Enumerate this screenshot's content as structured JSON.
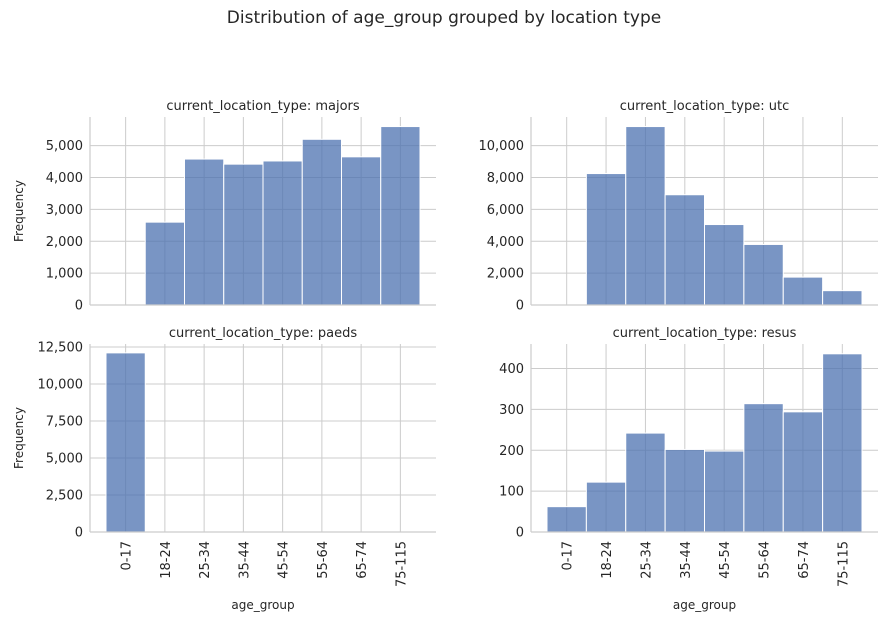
{
  "title": "Distribution of age_group grouped by location type",
  "chart_data": {
    "type": "bar",
    "title": "Distribution of age_group grouped by location type",
    "xlabel": "age_group",
    "ylabel": "Frequency",
    "categories": [
      "0-17",
      "18-24",
      "25-34",
      "35-44",
      "45-54",
      "55-64",
      "65-74",
      "75-115"
    ],
    "grid": true,
    "facets": [
      {
        "id": "majors",
        "title": "current_location_type: majors",
        "values": [
          0,
          2600,
          4580,
          4420,
          4520,
          5200,
          4650,
          5600
        ],
        "ylim": [
          0,
          5900
        ],
        "yticks": [
          0,
          1000,
          2000,
          3000,
          4000,
          5000
        ],
        "ytick_labels": [
          "0",
          "1,000",
          "2,000",
          "3,000",
          "4,000",
          "5,000"
        ],
        "show_ylabel": true,
        "show_xlabel": false
      },
      {
        "id": "utc",
        "title": "current_location_type: utc",
        "values": [
          0,
          8250,
          11200,
          6920,
          5050,
          3800,
          1750,
          900
        ],
        "ylim": [
          0,
          11800
        ],
        "yticks": [
          0,
          2000,
          4000,
          6000,
          8000,
          10000
        ],
        "ytick_labels": [
          "0",
          "2,000",
          "4,000",
          "6,000",
          "8,000",
          "10,000"
        ],
        "show_ylabel": false,
        "show_xlabel": false
      },
      {
        "id": "paeds",
        "title": "current_location_type: paeds",
        "values": [
          12100,
          0,
          0,
          0,
          0,
          0,
          0,
          0
        ],
        "ylim": [
          0,
          12700
        ],
        "yticks": [
          0,
          2500,
          5000,
          7500,
          10000,
          12500
        ],
        "ytick_labels": [
          "0",
          "2,500",
          "5,000",
          "7,500",
          "10,000",
          "12,500"
        ],
        "show_ylabel": true,
        "show_xlabel": true
      },
      {
        "id": "resus",
        "title": "current_location_type: resus",
        "values": [
          62,
          122,
          242,
          202,
          198,
          314,
          294,
          436
        ],
        "ylim": [
          0,
          460
        ],
        "yticks": [
          0,
          100,
          200,
          300,
          400
        ],
        "ytick_labels": [
          "0",
          "100",
          "200",
          "300",
          "400"
        ],
        "show_ylabel": false,
        "show_xlabel": true
      }
    ]
  }
}
